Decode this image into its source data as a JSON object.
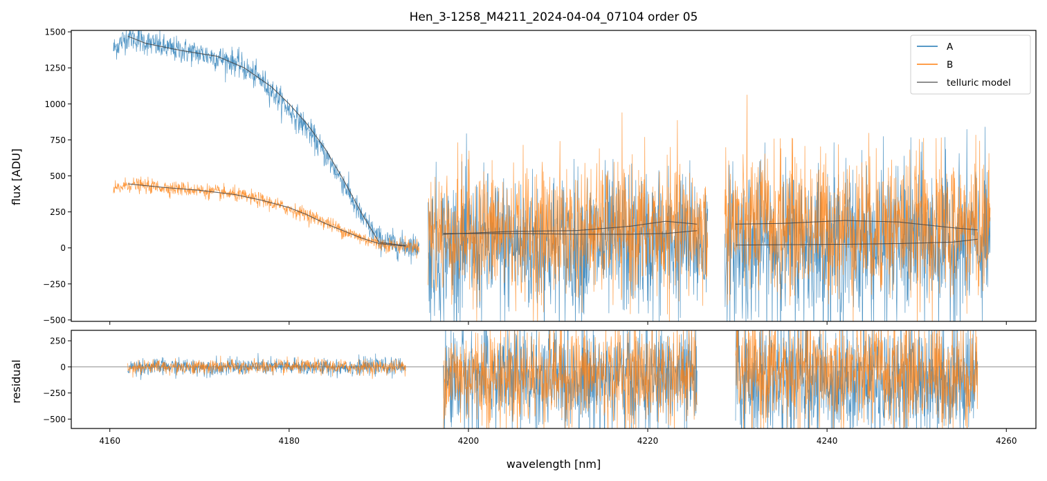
{
  "chart_data": [
    {
      "type": "line",
      "panel": "flux",
      "title": "Hen_3-1258_M4211_2024-04-04_07104  order 05",
      "xlabel": "",
      "ylabel": "flux [ADU]",
      "xlim": [
        4155.7,
        4263.3
      ],
      "ylim": [
        -510,
        1510
      ],
      "x_ticks": [
        4160,
        4180,
        4200,
        4220,
        4240,
        4260
      ],
      "y_ticks": [
        -500,
        -250,
        0,
        250,
        500,
        750,
        1000,
        1250,
        1500
      ],
      "y_tick_labels": [
        "−500",
        "−250",
        "0",
        "250",
        "500",
        "750",
        "1000",
        "1250",
        "1500"
      ],
      "grid": false,
      "legend": {
        "placement": "top-right",
        "entries": [
          "A",
          "B",
          "telluric model"
        ]
      },
      "series": [
        {
          "name": "A",
          "color": "#1f77b4",
          "segments": [
            {
              "x_range": [
                4160.4,
                4194.5
              ],
              "envelope": {
                "x": [
                  4160.4,
                  4162,
                  4166,
                  4170,
                  4174,
                  4177,
                  4180,
                  4182,
                  4184,
                  4186,
                  4188,
                  4190,
                  4192,
                  4194.5
                ],
                "y": [
                  1380,
                  1470,
                  1390,
                  1350,
                  1290,
                  1160,
                  960,
                  830,
                  650,
                  460,
                  220,
                  60,
                  20,
                  10
                ]
              },
              "noise": 45
            },
            {
              "x_range": [
                4195.5,
                4226.7
              ],
              "center": [
                0,
                40
              ],
              "noise": 250
            },
            {
              "x_range": [
                4228.6,
                4258.2
              ],
              "center": [
                20,
                40
              ],
              "noise": 270
            }
          ]
        },
        {
          "name": "B",
          "color": "#ff7f0e",
          "segments": [
            {
              "x_range": [
                4160.4,
                4194.5
              ],
              "envelope": {
                "x": [
                  4160.4,
                  4162,
                  4166,
                  4170,
                  4174,
                  4177,
                  4180,
                  4182,
                  4184,
                  4186,
                  4188,
                  4190,
                  4192,
                  4194.5
                ],
                "y": [
                  400,
                  440,
                  420,
                  400,
                  370,
                  330,
                  270,
                  230,
                  180,
                  120,
                  70,
                  30,
                  15,
                  10
                ]
              },
              "noise": 25
            },
            {
              "x_range": [
                4195.5,
                4226.7
              ],
              "center": [
                100,
                130
              ],
              "noise": 230
            },
            {
              "x_range": [
                4228.6,
                4258.2
              ],
              "center": [
                170,
                140
              ],
              "noise": 250
            }
          ]
        },
        {
          "name": "telluric model",
          "color": "#444444",
          "segments": [
            {
              "x": [
                4162.0,
                4164,
                4168,
                4172,
                4175,
                4178,
                4180,
                4182,
                4184,
                4186,
                4188,
                4190,
                4193
              ],
              "y": [
                1470,
                1420,
                1370,
                1330,
                1250,
                1120,
                1000,
                860,
                690,
                480,
                250,
                40,
                15
              ]
            },
            {
              "x": [
                4162.0,
                4166,
                4170,
                4174,
                4177,
                4180,
                4182,
                4184,
                4186,
                4188,
                4190,
                4193
              ],
              "y": [
                445,
                420,
                400,
                370,
                330,
                280,
                230,
                170,
                120,
                70,
                30,
                12
              ]
            },
            {
              "x": [
                4197.2,
                4205,
                4212,
                4218,
                4222,
                4225.5
              ],
              "y": [
                95,
                115,
                120,
                150,
                185,
                165
              ]
            },
            {
              "x": [
                4197.2,
                4205,
                4212,
                4218,
                4222,
                4225.5
              ],
              "y": [
                100,
                100,
                95,
                95,
                100,
                120
              ]
            },
            {
              "x": [
                4229.8,
                4235,
                4242,
                4248,
                4254,
                4256.8
              ],
              "y": [
                165,
                170,
                190,
                180,
                140,
                125
              ]
            },
            {
              "x": [
                4229.8,
                4235,
                4242,
                4248,
                4254,
                4256.8
              ],
              "y": [
                20,
                22,
                25,
                30,
                40,
                60
              ]
            }
          ]
        }
      ]
    },
    {
      "type": "line",
      "panel": "residual",
      "title": "",
      "xlabel": "wavelength [nm]",
      "ylabel": "residual",
      "xlim": [
        4155.7,
        4263.3
      ],
      "ylim": [
        -590,
        350
      ],
      "x_ticks": [
        4160,
        4180,
        4200,
        4220,
        4240,
        4260
      ],
      "x_tick_labels": [
        "4160",
        "4180",
        "4200",
        "4220",
        "4240",
        "4260"
      ],
      "y_ticks": [
        -500,
        -250,
        0,
        250
      ],
      "y_tick_labels": [
        "−500",
        "−250",
        "0",
        "250"
      ],
      "zero_line": true,
      "grid": false,
      "series": [
        {
          "name": "A",
          "color": "#1f77b4",
          "segments": [
            {
              "x_range": [
                4162.0,
                4193.0
              ],
              "center": [
                0,
                0
              ],
              "noise": 40
            },
            {
              "x_range": [
                4197.2,
                4225.5
              ],
              "center": [
                -110,
                -110
              ],
              "noise": 260
            },
            {
              "x_range": [
                4229.8,
                4256.8
              ],
              "center": [
                -120,
                -120
              ],
              "noise": 280
            }
          ]
        },
        {
          "name": "B",
          "color": "#ff7f0e",
          "segments": [
            {
              "x_range": [
                4162.0,
                4193.0
              ],
              "center": [
                0,
                0
              ],
              "noise": 35
            },
            {
              "x_range": [
                4197.2,
                4225.5
              ],
              "center": [
                -80,
                -80
              ],
              "noise": 240
            },
            {
              "x_range": [
                4229.8,
                4256.8
              ],
              "center": [
                -60,
                -60
              ],
              "noise": 260
            }
          ]
        }
      ]
    }
  ]
}
